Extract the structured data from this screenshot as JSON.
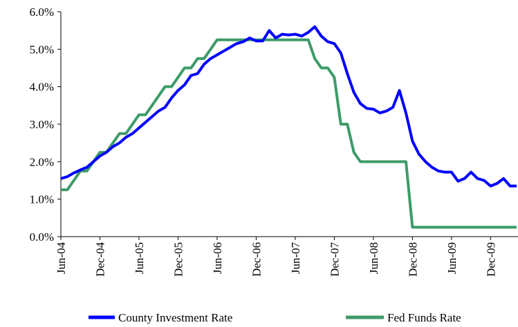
{
  "chart_data": {
    "type": "line",
    "categories": [
      "Jun-04",
      null,
      null,
      null,
      null,
      null,
      "Dec-04",
      null,
      null,
      null,
      null,
      null,
      "Jun-05",
      null,
      null,
      null,
      null,
      null,
      "Dec-05",
      null,
      null,
      null,
      null,
      null,
      "Jun-06",
      null,
      null,
      null,
      null,
      null,
      "Dec-06",
      null,
      null,
      null,
      null,
      null,
      "Jun-07",
      null,
      null,
      null,
      null,
      null,
      "Dec-07",
      null,
      null,
      null,
      null,
      null,
      "Jun-08",
      null,
      null,
      null,
      null,
      null,
      "Dec-08",
      null,
      null,
      null,
      null,
      null,
      "Jun-09",
      null,
      null,
      null,
      null,
      null,
      "Dec-09",
      null,
      null,
      null,
      null
    ],
    "series": [
      {
        "name": "County Investment Rate",
        "color": "#0000ff",
        "values": [
          1.55,
          1.6,
          1.7,
          1.78,
          1.85,
          2.0,
          2.15,
          2.25,
          2.4,
          2.5,
          2.65,
          2.75,
          2.9,
          3.05,
          3.2,
          3.35,
          3.45,
          3.7,
          3.9,
          4.05,
          4.3,
          4.35,
          4.6,
          4.75,
          4.85,
          4.95,
          5.05,
          5.15,
          5.2,
          5.3,
          5.22,
          5.22,
          5.5,
          5.3,
          5.4,
          5.38,
          5.4,
          5.35,
          5.45,
          5.6,
          5.35,
          5.2,
          5.15,
          4.9,
          4.35,
          3.85,
          3.55,
          3.42,
          3.4,
          3.3,
          3.35,
          3.45,
          3.9,
          3.3,
          2.55,
          2.2,
          2.0,
          1.85,
          1.75,
          1.72,
          1.72,
          1.48,
          1.55,
          1.72,
          1.55,
          1.5,
          1.35,
          1.42,
          1.55,
          1.35,
          1.35
        ]
      },
      {
        "name": "Fed Funds Rate",
        "color": "#3d9b69",
        "values": [
          1.25,
          1.25,
          1.5,
          1.75,
          1.75,
          2.0,
          2.25,
          2.25,
          2.5,
          2.75,
          2.75,
          3.0,
          3.25,
          3.25,
          3.5,
          3.75,
          4.0,
          4.0,
          4.25,
          4.5,
          4.5,
          4.75,
          4.75,
          5.0,
          5.25,
          5.25,
          5.25,
          5.25,
          5.25,
          5.25,
          5.25,
          5.25,
          5.25,
          5.25,
          5.25,
          5.25,
          5.25,
          5.25,
          5.25,
          4.75,
          4.5,
          4.5,
          4.25,
          3.0,
          3.0,
          2.25,
          2.0,
          2.0,
          2.0,
          2.0,
          2.0,
          2.0,
          2.0,
          2.0,
          0.25,
          0.25,
          0.25,
          0.25,
          0.25,
          0.25,
          0.25,
          0.25,
          0.25,
          0.25,
          0.25,
          0.25,
          0.25,
          0.25,
          0.25,
          0.25,
          0.25
        ]
      }
    ],
    "ylim": [
      0,
      6
    ],
    "yticks": [
      {
        "value": 0,
        "label": "0.0%"
      },
      {
        "value": 1,
        "label": "1.0%"
      },
      {
        "value": 2,
        "label": "2.0%"
      },
      {
        "value": 3,
        "label": "3.0%"
      },
      {
        "value": 4,
        "label": "4.0%"
      },
      {
        "value": 5,
        "label": "5.0%"
      },
      {
        "value": 6,
        "label": "6.0%"
      }
    ],
    "grid": false,
    "legend": "bottom"
  }
}
